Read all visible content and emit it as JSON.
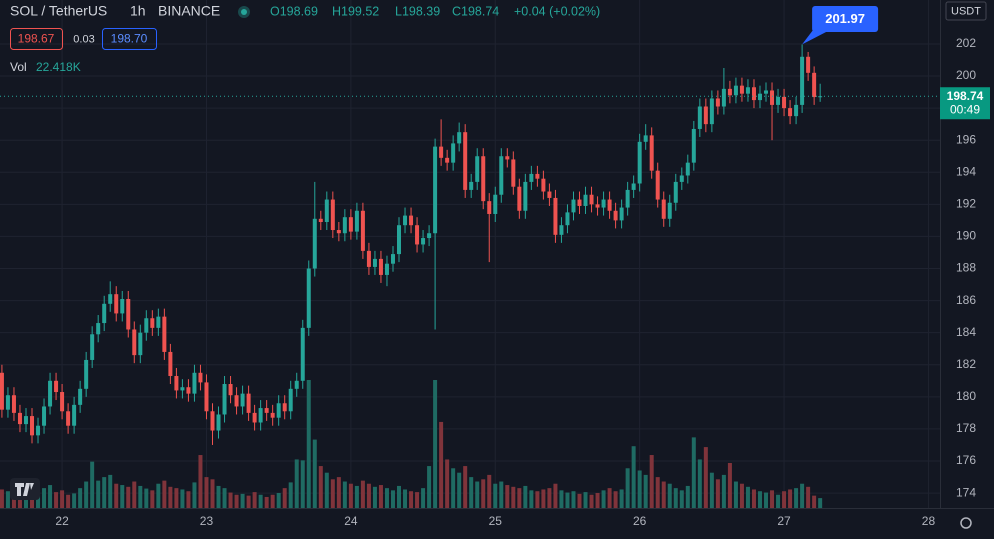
{
  "chart_data": {
    "type": "candlestick",
    "symbol": "SOL / TetherUS",
    "interval": "1h",
    "exchange": "BINANCE",
    "ohlc_header": [
      "O198.69",
      "H199.52",
      "L198.39",
      "C198.74"
    ],
    "change": "+0.04 (+0.02%)",
    "bid": "198.67",
    "spread": "0.03",
    "ask": "198.70",
    "volume_label": "Vol",
    "volume_value_label": "22.418K",
    "countdown": "00:49",
    "y_axis_label": "USDT",
    "up_color": "#26a69a",
    "down_color": "#ef5350",
    "volume_up_color": "#1f6b63",
    "volume_down_color": "#80343b",
    "grid": true,
    "xlim": [
      21.57,
      28.08
    ],
    "ylim": [
      173.07,
      204.74
    ],
    "xticks": [
      22,
      23,
      24,
      25,
      26,
      27,
      28
    ],
    "yticks": [
      174,
      176,
      178,
      180,
      182,
      184,
      186,
      188,
      190,
      192,
      194,
      196,
      198,
      200,
      202
    ],
    "x": [
      21.5833,
      21.625,
      21.6667,
      21.7083,
      21.75,
      21.7917,
      21.8333,
      21.875,
      21.9167,
      21.9583,
      22,
      22.0417,
      22.0833,
      22.125,
      22.1667,
      22.2083,
      22.25,
      22.2917,
      22.3333,
      22.375,
      22.4167,
      22.4583,
      22.5,
      22.5417,
      22.5833,
      22.625,
      22.6667,
      22.7083,
      22.75,
      22.7917,
      22.8333,
      22.875,
      22.9167,
      22.9583,
      23,
      23.0417,
      23.0833,
      23.125,
      23.1667,
      23.2083,
      23.25,
      23.2917,
      23.3333,
      23.375,
      23.4167,
      23.4583,
      23.5,
      23.5417,
      23.5833,
      23.625,
      23.6667,
      23.7083,
      23.75,
      23.7917,
      23.8333,
      23.875,
      23.9167,
      23.9583,
      24,
      24.0417,
      24.0833,
      24.125,
      24.1667,
      24.2083,
      24.25,
      24.2917,
      24.3333,
      24.375,
      24.4167,
      24.4583,
      24.5,
      24.5417,
      24.5833,
      24.625,
      24.6667,
      24.7083,
      24.75,
      24.7917,
      24.8333,
      24.875,
      24.9167,
      24.9583,
      25,
      25.0417,
      25.0833,
      25.125,
      25.1667,
      25.2083,
      25.25,
      25.2917,
      25.3333,
      25.375,
      25.4167,
      25.4583,
      25.5,
      25.5417,
      25.5833,
      25.625,
      25.6667,
      25.7083,
      25.75,
      25.7917,
      25.8333,
      25.875,
      25.9167,
      25.9583,
      26,
      26.0417,
      26.0833,
      26.125,
      26.1667,
      26.2083,
      26.25,
      26.2917,
      26.3333,
      26.375,
      26.4167,
      26.4583,
      26.5,
      26.5417,
      26.5833,
      26.625,
      26.6667,
      26.7083,
      26.75,
      26.7917,
      26.8333,
      26.875,
      26.9167,
      26.9583,
      27,
      27.0417,
      27.0833,
      27.125,
      27.1667,
      27.2083,
      27.25
    ],
    "open": [
      181.5,
      179.2,
      180.1,
      179.0,
      178.3,
      178.8,
      177.6,
      178.2,
      179.4,
      181.0,
      180.3,
      179.1,
      178.2,
      179.5,
      180.5,
      182.3,
      183.9,
      184.6,
      185.8,
      186.4,
      185.2,
      186.1,
      184.2,
      182.6,
      184.0,
      184.9,
      184.3,
      185.0,
      182.8,
      181.3,
      180.4,
      180.6,
      180.2,
      181.5,
      180.9,
      179.1,
      177.9,
      178.9,
      180.8,
      180.1,
      179.4,
      180.2,
      179.0,
      178.4,
      179.3,
      179.0,
      178.7,
      179.6,
      179.1,
      180.5,
      181.0,
      184.3,
      188.0,
      191.1,
      190.9,
      192.3,
      190.4,
      190.2,
      191.2,
      190.3,
      191.6,
      189.1,
      188.1,
      188.6,
      187.6,
      188.3,
      188.9,
      190.7,
      191.3,
      190.7,
      189.5,
      189.9,
      190.2,
      195.6,
      194.9,
      194.6,
      195.8,
      196.5,
      192.9,
      193.4,
      195.0,
      192.2,
      191.4,
      192.6,
      195.0,
      194.8,
      193.1,
      191.6,
      193.4,
      193.9,
      193.6,
      192.8,
      192.4,
      190.1,
      190.7,
      191.5,
      192.3,
      191.9,
      192.6,
      192.0,
      191.8,
      192.3,
      191.6,
      191.0,
      191.8,
      192.9,
      193.3,
      195.9,
      196.3,
      194.1,
      192.3,
      191.1,
      192.1,
      193.4,
      193.8,
      194.6,
      196.7,
      198.1,
      197.0,
      198.6,
      198.1,
      199.2,
      198.8,
      199.4,
      198.9,
      199.3,
      198.5,
      198.9,
      199.1,
      198.2,
      198.7,
      198.0,
      197.5,
      198.2,
      201.2,
      200.2,
      198.69
    ],
    "high": [
      182.0,
      180.6,
      180.6,
      179.5,
      179.3,
      179.3,
      178.7,
      179.9,
      181.5,
      181.5,
      180.8,
      179.6,
      180.0,
      181.0,
      182.8,
      184.4,
      185.1,
      186.3,
      187.2,
      186.9,
      186.6,
      186.6,
      184.7,
      184.5,
      185.4,
      185.4,
      185.5,
      185.5,
      183.3,
      181.8,
      181.1,
      181.1,
      182.0,
      182.0,
      181.4,
      179.6,
      179.4,
      181.3,
      181.3,
      180.6,
      180.7,
      180.7,
      179.5,
      179.8,
      179.8,
      179.5,
      180.1,
      180.1,
      181.0,
      181.5,
      184.8,
      188.5,
      193.4,
      191.6,
      192.8,
      192.8,
      190.9,
      191.7,
      191.7,
      192.1,
      192.1,
      189.6,
      189.1,
      189.1,
      188.8,
      189.4,
      191.2,
      191.8,
      191.8,
      191.2,
      190.4,
      190.7,
      196.1,
      197.3,
      195.4,
      196.3,
      197.1,
      197.0,
      193.9,
      195.5,
      195.5,
      192.7,
      193.1,
      195.5,
      195.5,
      195.3,
      193.6,
      193.9,
      194.4,
      194.4,
      194.1,
      193.3,
      192.9,
      191.2,
      192.0,
      192.8,
      192.8,
      193.1,
      193.1,
      192.5,
      192.8,
      192.8,
      192.1,
      192.3,
      193.4,
      193.8,
      196.4,
      197.0,
      196.8,
      194.6,
      192.8,
      192.6,
      193.9,
      194.3,
      195.1,
      197.2,
      198.6,
      198.6,
      199.1,
      199.1,
      200.5,
      199.7,
      199.9,
      199.9,
      199.8,
      199.8,
      199.4,
      199.6,
      199.6,
      199.2,
      199.2,
      198.5,
      198.7,
      201.97,
      201.5,
      200.6,
      199.52
    ],
    "low": [
      178.7,
      178.7,
      178.5,
      177.8,
      177.8,
      177.1,
      177.1,
      177.7,
      178.9,
      179.8,
      178.6,
      177.7,
      177.7,
      179.0,
      180.0,
      181.8,
      183.4,
      184.1,
      185.3,
      184.7,
      184.7,
      183.7,
      182.1,
      182.1,
      183.5,
      183.8,
      183.8,
      182.3,
      180.8,
      179.9,
      179.9,
      179.7,
      179.7,
      180.4,
      178.6,
      177.0,
      177.4,
      178.4,
      179.6,
      178.9,
      178.9,
      178.5,
      177.9,
      177.9,
      178.5,
      178.2,
      178.2,
      178.6,
      178.6,
      180.0,
      180.5,
      183.8,
      187.5,
      190.4,
      190.4,
      189.9,
      189.7,
      189.7,
      189.8,
      189.8,
      188.6,
      187.6,
      187.6,
      187.1,
      186.9,
      187.8,
      188.4,
      190.2,
      190.2,
      189.0,
      189.0,
      189.4,
      184.2,
      194.4,
      194.1,
      194.1,
      195.3,
      192.4,
      192.4,
      192.9,
      191.7,
      188.4,
      190.9,
      192.1,
      194.3,
      192.6,
      191.1,
      191.1,
      192.9,
      193.1,
      192.3,
      191.9,
      189.6,
      189.6,
      190.2,
      191.0,
      191.4,
      191.4,
      191.5,
      191.3,
      191.3,
      191.1,
      190.5,
      190.5,
      191.3,
      192.4,
      192.8,
      195.4,
      193.6,
      191.8,
      190.6,
      190.6,
      191.6,
      192.9,
      193.3,
      194.1,
      196.2,
      196.5,
      196.5,
      197.6,
      197.6,
      198.3,
      198.3,
      198.4,
      198.4,
      198.0,
      198.0,
      198.4,
      196.0,
      197.7,
      197.5,
      197.0,
      197.0,
      197.7,
      199.7,
      198.2,
      198.39
    ],
    "close": [
      179.2,
      180.1,
      179.0,
      178.3,
      178.8,
      177.6,
      178.2,
      179.4,
      181.0,
      180.3,
      179.1,
      178.2,
      179.5,
      180.5,
      182.3,
      183.9,
      184.6,
      185.8,
      186.4,
      185.2,
      186.1,
      184.2,
      182.6,
      184.0,
      184.9,
      184.3,
      185.0,
      182.8,
      181.3,
      180.4,
      180.6,
      180.2,
      181.5,
      180.9,
      179.1,
      177.9,
      178.9,
      180.8,
      180.1,
      179.4,
      180.2,
      179.0,
      178.4,
      179.3,
      179.0,
      178.7,
      179.6,
      179.1,
      180.5,
      181.0,
      184.3,
      188.0,
      191.1,
      190.9,
      192.3,
      190.4,
      190.2,
      191.2,
      190.3,
      191.6,
      189.1,
      188.1,
      188.6,
      187.6,
      188.3,
      188.9,
      190.7,
      191.3,
      190.7,
      189.5,
      189.9,
      190.2,
      195.6,
      194.9,
      194.6,
      195.8,
      196.5,
      192.9,
      193.4,
      195.0,
      192.2,
      191.4,
      192.6,
      195.0,
      194.8,
      193.1,
      191.6,
      193.4,
      193.9,
      193.6,
      192.8,
      192.4,
      190.1,
      190.7,
      191.5,
      192.3,
      191.9,
      192.6,
      192.0,
      191.8,
      192.3,
      191.6,
      191.0,
      191.8,
      192.9,
      193.3,
      195.9,
      196.3,
      194.1,
      192.3,
      191.1,
      192.1,
      193.4,
      193.8,
      194.6,
      196.7,
      198.1,
      197.0,
      198.6,
      198.1,
      199.2,
      198.8,
      199.4,
      198.9,
      199.3,
      198.5,
      198.9,
      199.1,
      198.2,
      198.7,
      198.0,
      197.5,
      198.2,
      201.2,
      200.2,
      198.69,
      198.74
    ],
    "volume": [
      42000,
      38000,
      30000,
      35000,
      28000,
      40000,
      32000,
      45000,
      52000,
      36000,
      40000,
      30000,
      33000,
      45000,
      60000,
      105000,
      62000,
      70000,
      75000,
      55000,
      52000,
      48000,
      60000,
      50000,
      44000,
      40000,
      55000,
      62000,
      48000,
      45000,
      42000,
      38000,
      58000,
      120000,
      70000,
      65000,
      50000,
      45000,
      35000,
      30000,
      32000,
      28000,
      36000,
      30000,
      25000,
      30000,
      34000,
      45000,
      58000,
      110000,
      108000,
      290000,
      155000,
      95000,
      80000,
      65000,
      70000,
      60000,
      55000,
      50000,
      62000,
      55000,
      48000,
      52000,
      45000,
      40000,
      50000,
      42000,
      38000,
      36000,
      45000,
      95000,
      290000,
      195000,
      110000,
      90000,
      80000,
      95000,
      70000,
      60000,
      65000,
      75000,
      55000,
      60000,
      52000,
      48000,
      45000,
      50000,
      40000,
      38000,
      42000,
      45000,
      55000,
      40000,
      35000,
      38000,
      32000,
      36000,
      30000,
      34000,
      40000,
      45000,
      38000,
      42000,
      90000,
      140000,
      85000,
      75000,
      120000,
      70000,
      60000,
      55000,
      45000,
      40000,
      50000,
      160000,
      110000,
      138000,
      80000,
      65000,
      75000,
      102000,
      60000,
      55000,
      48000,
      42000,
      38000,
      35000,
      40000,
      30000,
      38000,
      42000,
      45000,
      55000,
      48000,
      28000,
      22418
    ]
  }
}
